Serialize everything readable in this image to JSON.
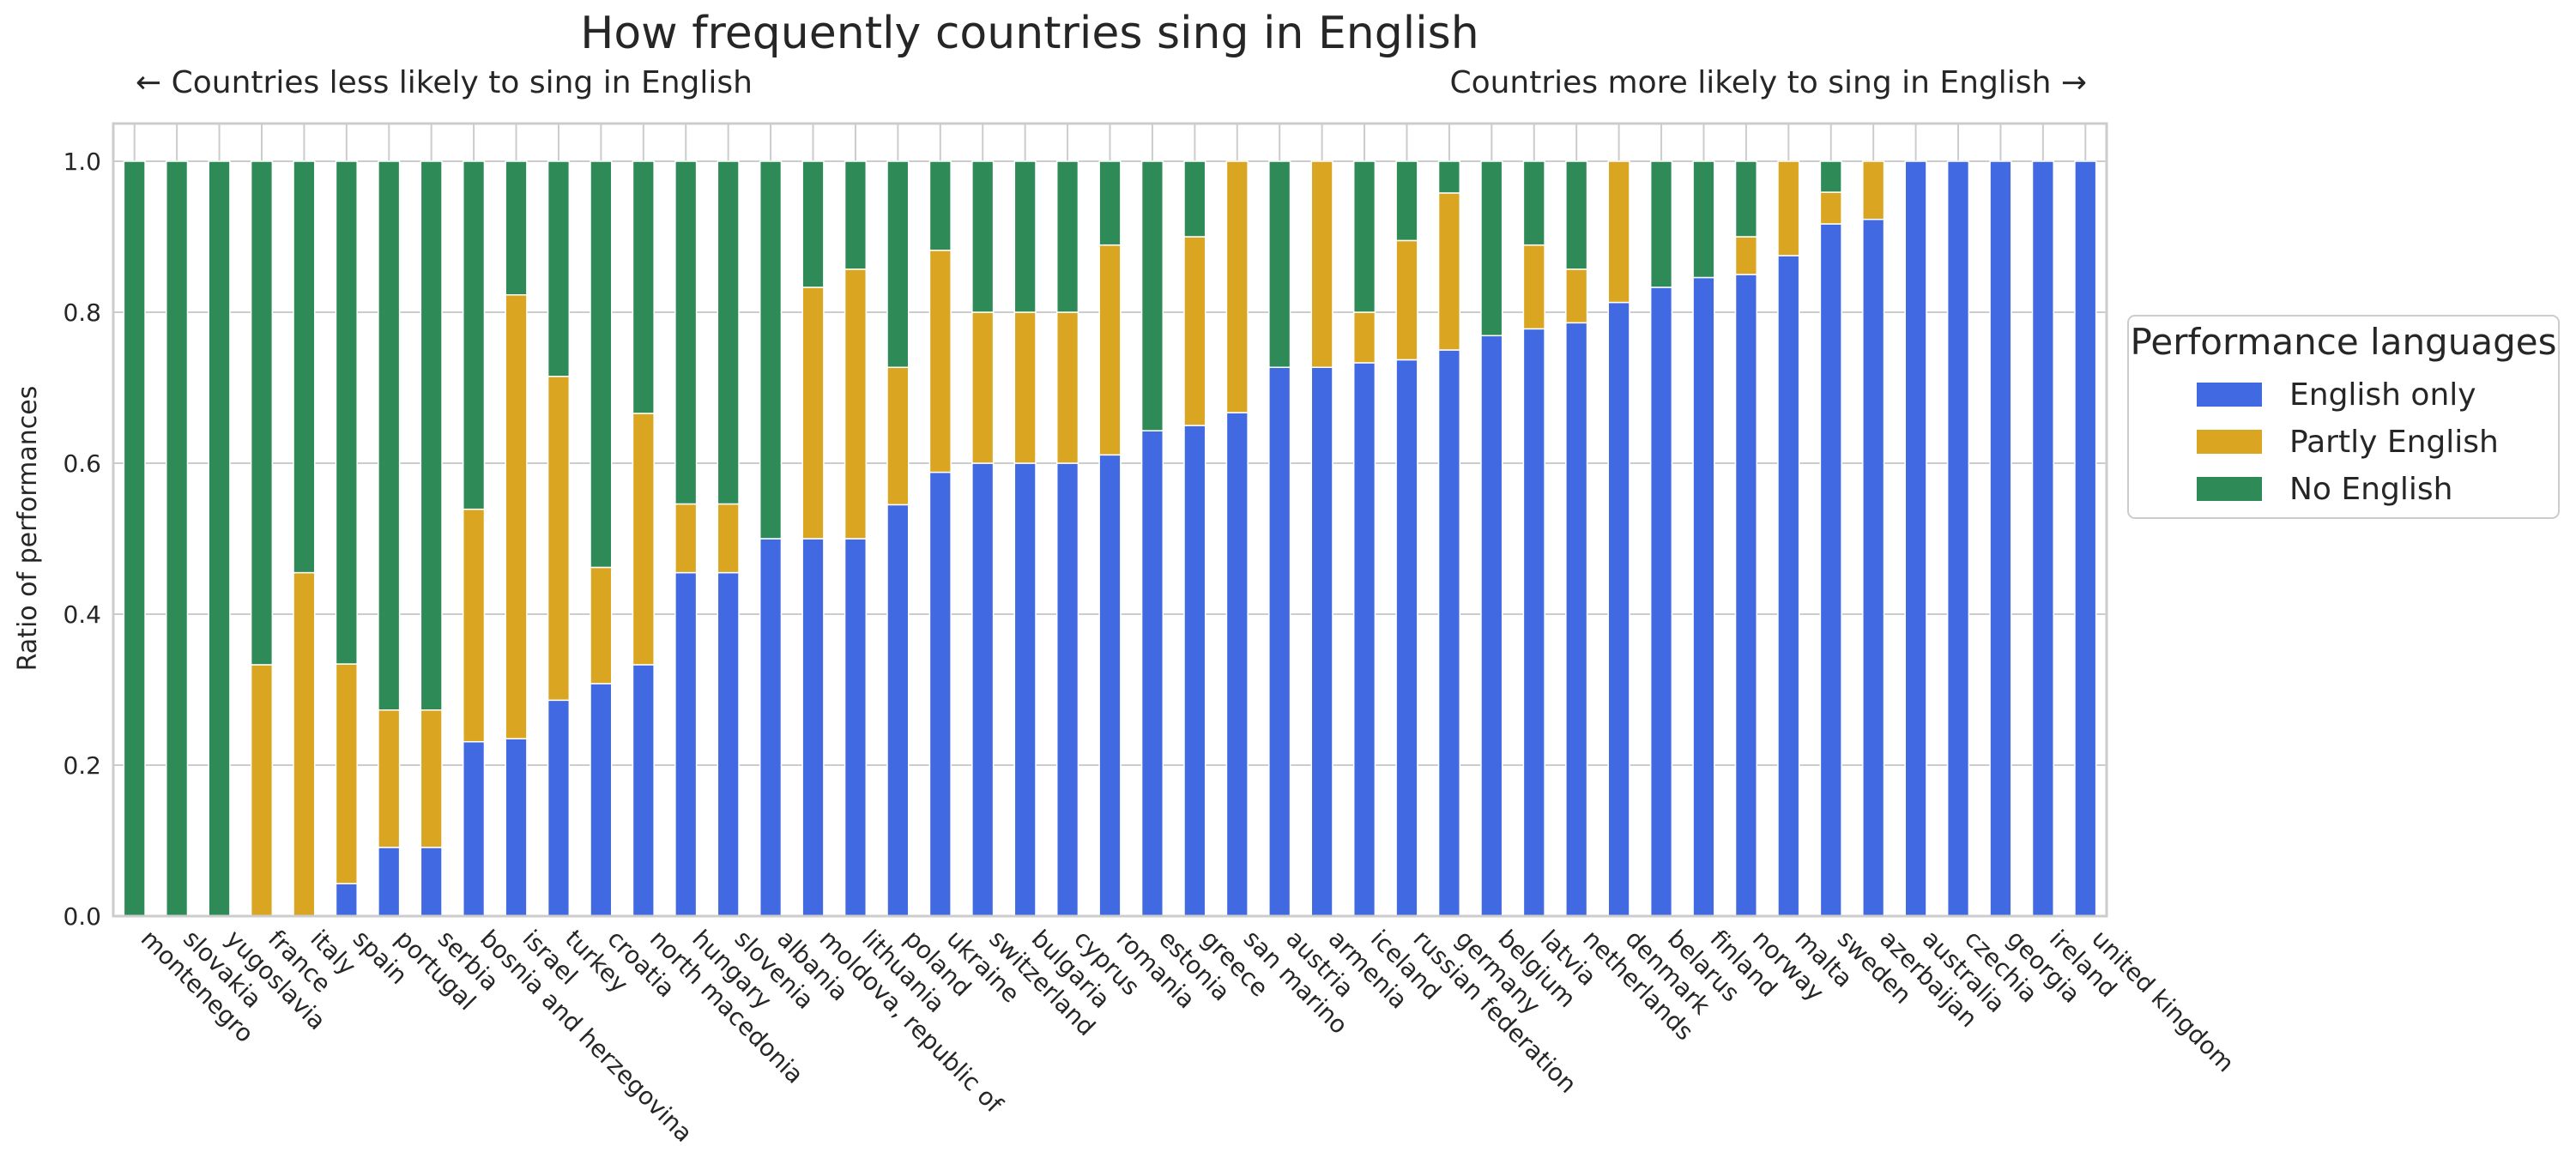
{
  "chart_data": {
    "type": "bar",
    "stacked": true,
    "title": "How frequently countries sing in English",
    "annotation_left": "← Countries less likely to sing in English",
    "annotation_right": "Countries more likely to sing in English →",
    "xlabel": "",
    "ylabel": "Ratio of performances",
    "ylim": [
      0,
      1.05
    ],
    "yticks": [
      "0.0",
      "0.2",
      "0.4",
      "0.6",
      "0.8",
      "1.0"
    ],
    "grid": true,
    "legend": {
      "title": "Performance languages",
      "placement": "right"
    },
    "categories": [
      "montenegro",
      "slovakia",
      "yugoslavia",
      "france",
      "italy",
      "spain",
      "portugal",
      "serbia",
      "bosnia and herzegovina",
      "israel",
      "turkey",
      "croatia",
      "north macedonia",
      "hungary",
      "slovenia",
      "albania",
      "moldova, republic of",
      "lithuania",
      "poland",
      "ukraine",
      "switzerland",
      "bulgaria",
      "cyprus",
      "romania",
      "estonia",
      "greece",
      "san marino",
      "austria",
      "armenia",
      "iceland",
      "russian federation",
      "germany",
      "belgium",
      "latvia",
      "netherlands",
      "denmark",
      "belarus",
      "finland",
      "norway",
      "malta",
      "sweden",
      "azerbaijan",
      "australia",
      "czechia",
      "georgia",
      "ireland",
      "united kingdom"
    ],
    "series": [
      {
        "name": "English only",
        "color": "#4169e1",
        "values": [
          0,
          0,
          0,
          0,
          0,
          0.043,
          0.091,
          0.091,
          0.231,
          0.235,
          0.286,
          0.308,
          0.333,
          0.455,
          0.455,
          0.5,
          0.5,
          0.5,
          0.545,
          0.588,
          0.6,
          0.6,
          0.6,
          0.611,
          0.643,
          0.65,
          0.667,
          0.727,
          0.727,
          0.733,
          0.737,
          0.75,
          0.769,
          0.778,
          0.786,
          0.813,
          0.833,
          0.846,
          0.85,
          0.875,
          0.917,
          0.923,
          1,
          1,
          1,
          1,
          1
        ]
      },
      {
        "name": "Partly English",
        "color": "#daa520",
        "values": [
          0,
          0,
          0,
          0.333,
          0.455,
          0.291,
          0.182,
          0.182,
          0.308,
          0.588,
          0.429,
          0.154,
          0.333,
          0.091,
          0.091,
          0,
          0.333,
          0.357,
          0.182,
          0.294,
          0.2,
          0.2,
          0.2,
          0.278,
          0,
          0.25,
          0.333,
          0,
          0.273,
          0.067,
          0.158,
          0.208,
          0,
          0.111,
          0.071,
          0.187,
          0,
          0,
          0.05,
          0.125,
          0.042,
          0.077,
          0,
          0,
          0,
          0,
          0
        ]
      },
      {
        "name": "No English",
        "color": "#2e8b57",
        "values": [
          1,
          1,
          1,
          0.667,
          0.545,
          0.666,
          0.727,
          0.727,
          0.461,
          0.177,
          0.285,
          0.538,
          0.334,
          0.454,
          0.454,
          0.5,
          0.167,
          0.143,
          0.273,
          0.118,
          0.2,
          0.2,
          0.2,
          0.111,
          0.357,
          0.1,
          0,
          0.273,
          0,
          0.2,
          0.105,
          0.042,
          0.231,
          0.111,
          0.143,
          0,
          0.167,
          0.154,
          0.1,
          0,
          0.041,
          0,
          0,
          0,
          0,
          0,
          0
        ]
      }
    ]
  }
}
